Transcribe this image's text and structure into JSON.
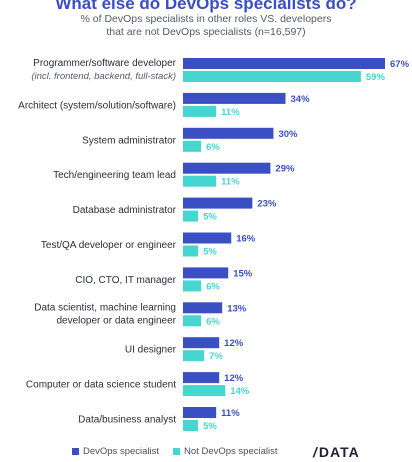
{
  "title": "What else do DevOps specialists do?",
  "subtitle_line1": "% of DevOps specialists in other roles VS. developers",
  "subtitle_line2": "that are not DevOps specialists (n=16,597)",
  "colors": {
    "devops": "#3b4fc4",
    "not_devops": "#46d5cf",
    "title": "#3b4fc4"
  },
  "chart_data": {
    "type": "bar",
    "orientation": "horizontal",
    "title": "What else do DevOps specialists do?",
    "categories": [
      {
        "label": "Programmer/software developer",
        "sublabel": "(incl. frontend, backend, full-stack)"
      },
      {
        "label": "Architect (system/solution/software)"
      },
      {
        "label": "System administrator"
      },
      {
        "label": "Tech/engineering team lead"
      },
      {
        "label": "Database administrator"
      },
      {
        "label": "Test/QA developer or engineer"
      },
      {
        "label": "CIO, CTO, IT manager"
      },
      {
        "label": "Data scientist, machine learning",
        "label2": "developer or data engineer"
      },
      {
        "label": "UI designer"
      },
      {
        "label": "Computer or data science student"
      },
      {
        "label": "Data/business analyst"
      }
    ],
    "series": [
      {
        "name": "DevOps specialist",
        "values": [
          67,
          34,
          30,
          29,
          23,
          16,
          15,
          13,
          12,
          12,
          11
        ]
      },
      {
        "name": "Not DevOps specialist",
        "values": [
          59,
          11,
          6,
          11,
          5,
          5,
          6,
          6,
          7,
          14,
          5
        ]
      }
    ],
    "xlim": [
      0,
      67
    ],
    "value_suffix": "%",
    "grid": false,
    "legend_position": "bottom-left"
  },
  "legend": {
    "devops": "DevOps specialist",
    "not_devops": "Not DevOps specialist"
  },
  "brand": {
    "slash": "/",
    "name": "DATA"
  }
}
